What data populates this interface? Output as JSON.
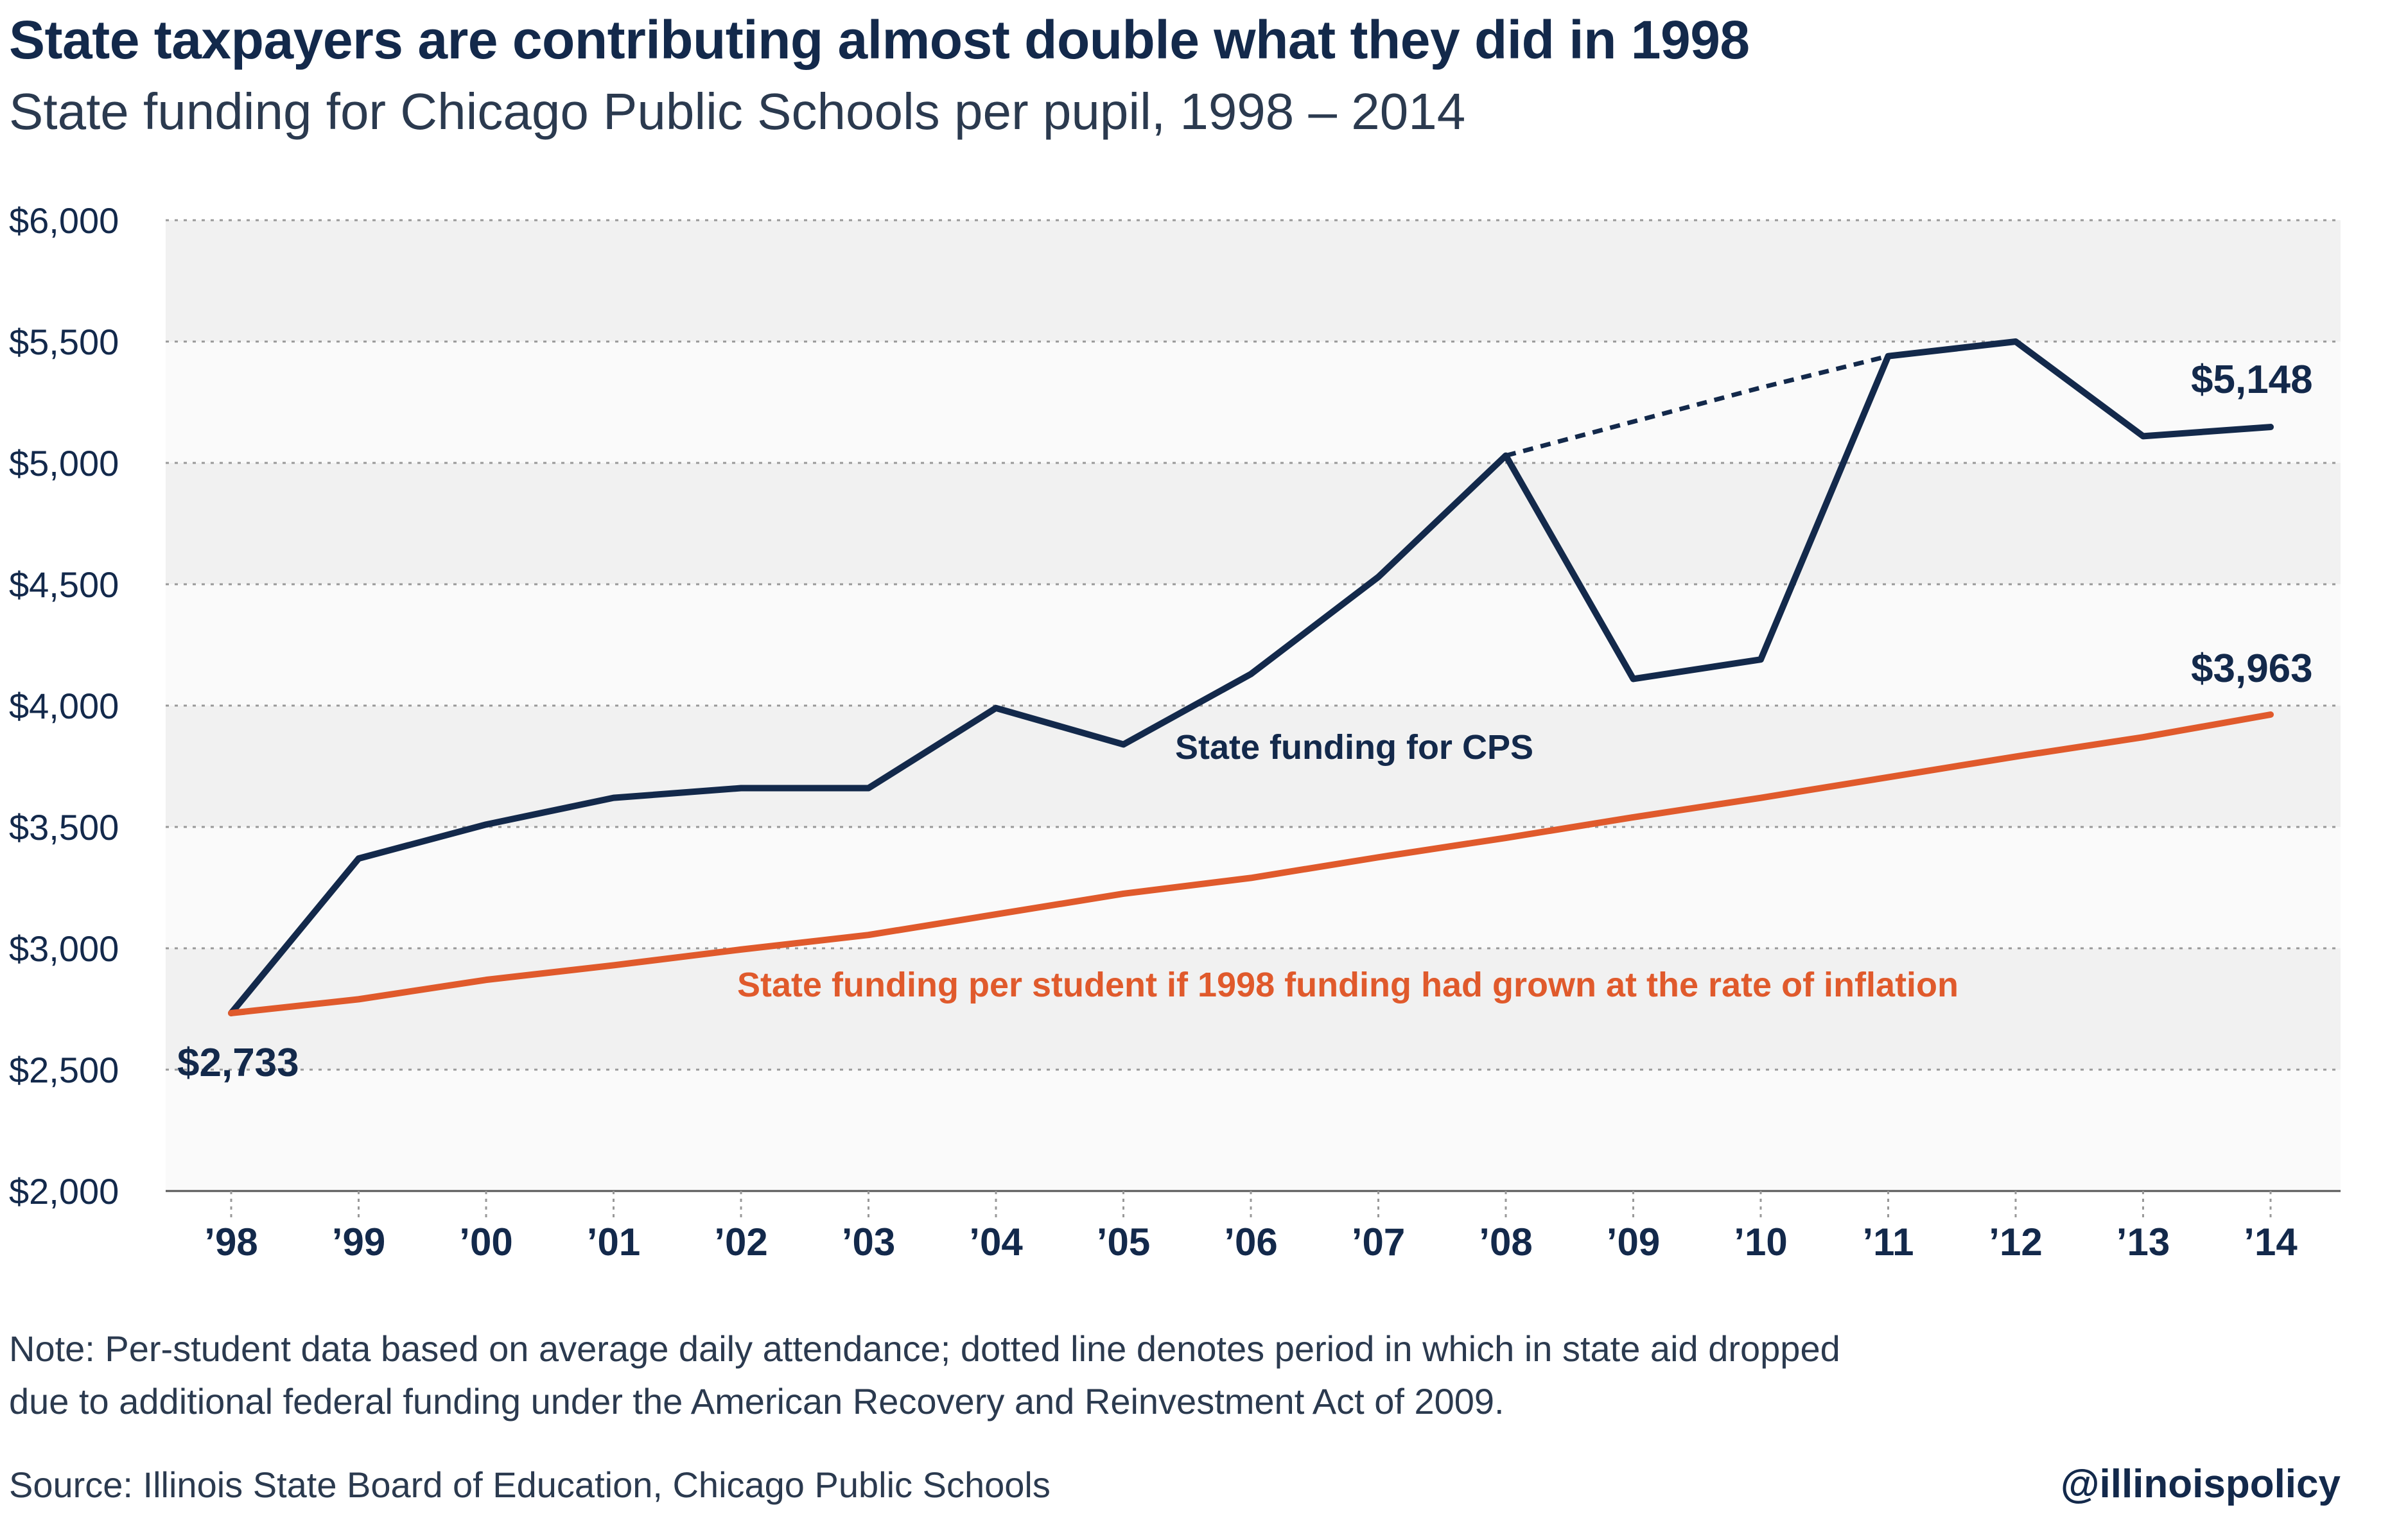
{
  "title": "State taxpayers are contributing almost double what they did in 1998",
  "subtitle": "State funding for Chicago Public Schools per pupil, 1998 – 2014",
  "note_line1": "Note: Per-student data based on average daily attendance; dotted line denotes period in which in state aid dropped",
  "note_line2": "due to additional federal funding under the American Recovery and Reinvestment Act of 2009.",
  "source": "Source: Illinois State Board of Education, Chicago Public Schools",
  "handle": "@illinoispolicy",
  "colors": {
    "cps": "#13294b",
    "inflation": "#e05a2c",
    "band_light": "#fafafa",
    "band_dark": "#f1f1f1",
    "grid": "#999999",
    "axis_text": "#13294b"
  },
  "chart_data": {
    "type": "line",
    "title": "State taxpayers are contributing almost double what they did in 1998",
    "subtitle": "State funding for Chicago Public Schools per pupil, 1998 – 2014",
    "categories": [
      "’98",
      "’99",
      "’00",
      "’01",
      "’02",
      "’03",
      "’04",
      "’05",
      "’06",
      "’07",
      "’08",
      "’09",
      "’10",
      "’11",
      "’12",
      "’13",
      "’14"
    ],
    "ylim": [
      2000,
      6000
    ],
    "yticks": [
      2000,
      2500,
      3000,
      3500,
      4000,
      4500,
      5000,
      5500,
      6000
    ],
    "ytick_labels": [
      "$2,000",
      "$2,500",
      "$3,000",
      "$3,500",
      "$4,000",
      "$4,500",
      "$5,000",
      "$5,500",
      "$6,000"
    ],
    "grid": true,
    "series": [
      {
        "name": "State funding for CPS",
        "values": [
          2733,
          3370,
          3510,
          3620,
          3660,
          3660,
          3990,
          3840,
          4130,
          4530,
          5030,
          4110,
          4190,
          5440,
          5500,
          5110,
          5148
        ]
      },
      {
        "name": "State funding per student if 1998 funding had grown at the rate of inflation",
        "values": [
          2733,
          2790,
          2870,
          2930,
          2995,
          3055,
          3140,
          3225,
          3290,
          3375,
          3455,
          3540,
          3620,
          3705,
          3790,
          3870,
          3963
        ]
      }
    ],
    "projection": {
      "style": "dotted",
      "from_index": 10,
      "to_index": 13,
      "values": [
        5030,
        5170,
        5310,
        5440
      ]
    },
    "data_labels": {
      "start": "$2,733",
      "cps_end": "$5,148",
      "inflation_end": "$3,963"
    }
  }
}
